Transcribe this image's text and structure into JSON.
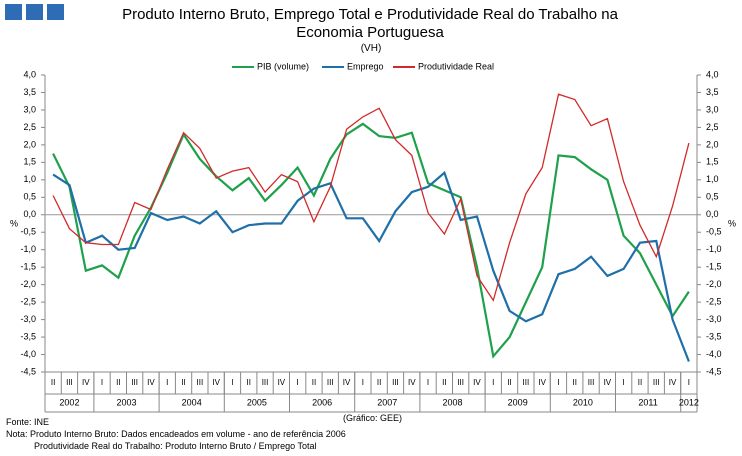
{
  "chart_data": {
    "type": "line",
    "title": "Produto Interno Bruto, Emprego Total e Produtividade Real do Trabalho na Economia Portuguesa",
    "subtitle": "(VH)",
    "ylabel": "%",
    "y2label": "%",
    "categories": [
      "II",
      "III",
      "IV",
      "I",
      "II",
      "III",
      "IV",
      "I",
      "II",
      "III",
      "IV",
      "I",
      "II",
      "III",
      "IV",
      "I",
      "II",
      "III",
      "IV",
      "I",
      "II",
      "III",
      "IV",
      "I",
      "II",
      "III",
      "IV",
      "I",
      "II",
      "III",
      "IV",
      "I",
      "II",
      "III",
      "IV",
      "I",
      "II",
      "III",
      "IV",
      "I"
    ],
    "years": [
      "2002",
      "2003",
      "2004",
      "2005",
      "2006",
      "2007",
      "2008",
      "2009",
      "2010",
      "2011",
      "2012"
    ],
    "series": [
      {
        "name": "PIB (volume)",
        "color": "#1fa04a",
        "values": [
          1.75,
          0.8,
          -1.6,
          -1.45,
          -1.8,
          -0.6,
          0.2,
          1.2,
          2.3,
          1.6,
          1.1,
          0.7,
          1.05,
          0.4,
          0.85,
          1.35,
          0.55,
          1.6,
          2.3,
          2.6,
          2.25,
          2.2,
          2.35,
          0.9,
          0.7,
          0.5,
          -1.5,
          -4.05,
          -3.5,
          -2.5,
          -1.5,
          1.7,
          1.65,
          1.3,
          1.0,
          -0.6,
          -1.1,
          -2.0,
          -2.9,
          -2.2
        ]
      },
      {
        "name": "Emprego",
        "color": "#1f6fa8",
        "values": [
          1.15,
          0.85,
          -0.8,
          -0.6,
          -1.0,
          -0.95,
          0.05,
          -0.15,
          -0.05,
          -0.25,
          0.1,
          -0.5,
          -0.3,
          -0.25,
          -0.25,
          0.4,
          0.75,
          0.9,
          -0.1,
          -0.1,
          -0.75,
          0.1,
          0.65,
          0.8,
          1.2,
          -0.15,
          -0.05,
          -1.6,
          -2.75,
          -3.05,
          -2.85,
          -1.7,
          -1.55,
          -1.2,
          -1.75,
          -1.55,
          -0.8,
          -0.75,
          -3.0,
          -4.2
        ]
      },
      {
        "name": "Produtividade Real",
        "color": "#d22a2a",
        "values": [
          0.55,
          -0.4,
          -0.8,
          -0.85,
          -0.85,
          0.35,
          0.15,
          1.3,
          2.35,
          1.9,
          1.05,
          1.25,
          1.35,
          0.65,
          1.15,
          0.95,
          -0.2,
          0.8,
          2.45,
          2.8,
          3.05,
          2.15,
          1.7,
          0.05,
          -0.55,
          0.45,
          -1.75,
          -2.45,
          -0.8,
          0.6,
          1.35,
          3.45,
          3.3,
          2.55,
          2.75,
          0.95,
          -0.3,
          -1.2,
          0.25,
          2.05
        ]
      }
    ],
    "ylim": [
      -4.5,
      4.0
    ],
    "yticks": [
      {
        "value": 4.0,
        "label": "4,0"
      },
      {
        "value": 3.5,
        "label": "3,5"
      },
      {
        "value": 3.0,
        "label": "3,0"
      },
      {
        "value": 2.5,
        "label": "2,5"
      },
      {
        "value": 2.0,
        "label": "2,0"
      },
      {
        "value": 1.5,
        "label": "1,5"
      },
      {
        "value": 1.0,
        "label": "1,0"
      },
      {
        "value": 0.5,
        "label": "0,5"
      },
      {
        "value": 0.0,
        "label": "0,0"
      },
      {
        "value": -0.5,
        "label": "-0,5"
      },
      {
        "value": -1.0,
        "label": "-1,0"
      },
      {
        "value": -1.5,
        "label": "-1,5"
      },
      {
        "value": -2.0,
        "label": "-2,0"
      },
      {
        "value": -2.5,
        "label": "-2,5"
      },
      {
        "value": -3.0,
        "label": "-3,0"
      },
      {
        "value": -3.5,
        "label": "-3,5"
      },
      {
        "value": -4.0,
        "label": "-4,0"
      },
      {
        "value": -4.5,
        "label": "-4,5"
      }
    ],
    "y2lim": [
      -4.5,
      4.0
    ],
    "y2ticks": [
      {
        "value": 4.0,
        "label": "4,0"
      },
      {
        "value": 3.5,
        "label": "3,5"
      },
      {
        "value": 3.0,
        "label": "3,0"
      },
      {
        "value": 2.5,
        "label": "2,5"
      },
      {
        "value": 2.0,
        "label": "2,0"
      },
      {
        "value": 1.5,
        "label": "1,5"
      },
      {
        "value": 1.0,
        "label": "1,0"
      },
      {
        "value": 0.5,
        "label": "0,5"
      },
      {
        "value": 0.0,
        "label": "0,0"
      },
      {
        "value": -0.5,
        "label": "-0,5"
      },
      {
        "value": -1.0,
        "label": "-1,0"
      },
      {
        "value": -1.5,
        "label": "-1,5"
      },
      {
        "value": -2.0,
        "label": "-2,0"
      },
      {
        "value": -2.5,
        "label": "-2,5"
      },
      {
        "value": -3.0,
        "label": "-3,0"
      },
      {
        "value": -3.5,
        "label": "-3,5"
      },
      {
        "value": -4.0,
        "label": "-4,0"
      },
      {
        "value": -4.5,
        "label": "-4,5"
      }
    ],
    "grid": false,
    "legend": "top",
    "source": "Fonte: INE",
    "credit": "(Gráfico: GEE)",
    "notes": [
      "Nota: Produto Interno Bruto: Dados encadeados em volume - ano de referência 2006",
      "Produtividade Real do Trabalho: Produto Interno Bruto / Emprego Total"
    ]
  }
}
